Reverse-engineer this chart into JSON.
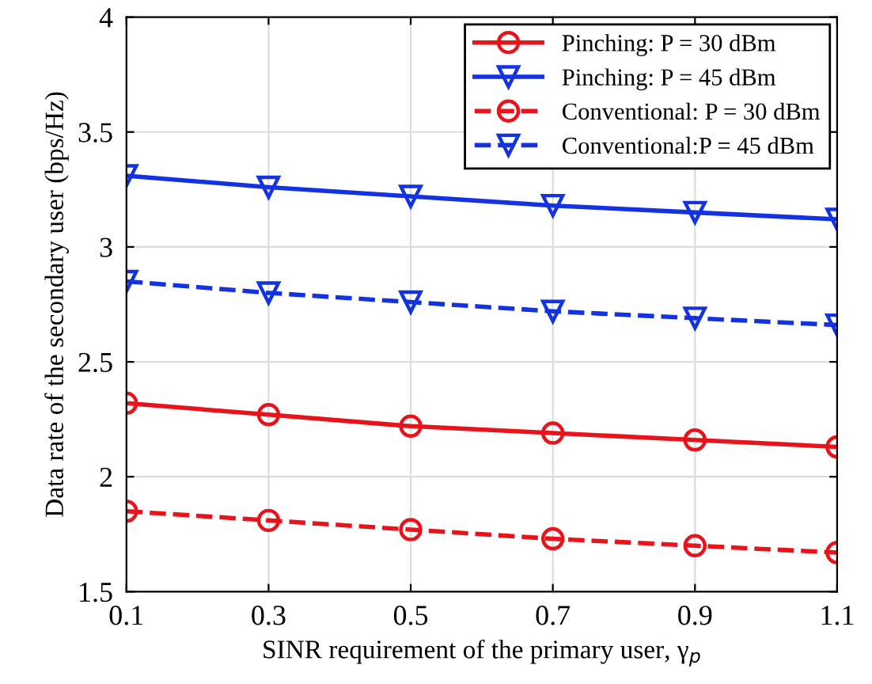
{
  "chart_data": {
    "type": "line",
    "xlabel": "SINR requirement of the primary user, γ$_{p}$",
    "ylabel": "Data rate of the secondary user (bps/Hz)",
    "x": [
      0.1,
      0.3,
      0.5,
      0.7,
      0.9,
      1.1
    ],
    "series": [
      {
        "name": "Pinching: P = 30 dBm",
        "color": "#e8141c",
        "values": [
          2.32,
          2.27,
          2.22,
          2.19,
          2.16,
          2.13
        ],
        "marker": "circle",
        "line_style": "solid"
      },
      {
        "name": "Pinching: P = 45 dBm",
        "color": "#1433e0",
        "values": [
          3.31,
          3.26,
          3.22,
          3.18,
          3.15,
          3.12
        ],
        "marker": "triangle",
        "line_style": "solid"
      },
      {
        "name": "Conventional: P = 30 dBm",
        "color": "#e8141c",
        "values": [
          1.85,
          1.81,
          1.77,
          1.73,
          1.7,
          1.67
        ],
        "marker": "circle",
        "line_style": "dashed"
      },
      {
        "name": "Conventional:P = 45 dBm",
        "color": "#1433e0",
        "values": [
          2.85,
          2.8,
          2.76,
          2.72,
          2.69,
          2.66
        ],
        "marker": "triangle",
        "line_style": "dashed"
      }
    ],
    "xlim": [
      0.1,
      1.1
    ],
    "xticks": [
      0.1,
      0.3,
      0.5,
      0.7,
      0.9,
      1.1
    ],
    "ylim": [
      1.5,
      4
    ],
    "yticks": [
      1.5,
      2,
      2.5,
      3,
      3.5,
      4
    ],
    "grid": true,
    "legend": "top right"
  }
}
